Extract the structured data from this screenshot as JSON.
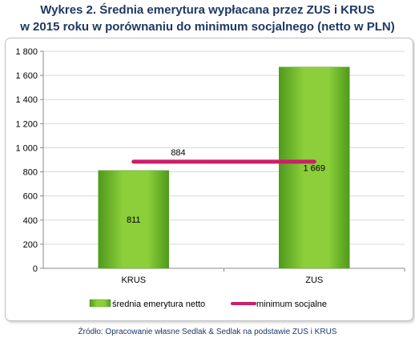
{
  "title_line1": "Wykres 2. Średnia emerytura wypłacana przez ZUS i KRUS",
  "title_line2": "w 2015 roku w porównaniu do minimum socjalnego (netto w PLN)",
  "source": "Źródło: Opracowanie własne Sedlak & Sedlak na podstawie ZUS i KRUS",
  "colors": {
    "bar": "#8ccf3a",
    "bar_dark": "#4f9a1c",
    "line": "#cc1f6a",
    "grid": "#d9d9d9",
    "axis_text": "#000000"
  },
  "chart_data": {
    "type": "bar",
    "categories": [
      "KRUS",
      "ZUS"
    ],
    "series": [
      {
        "name": "średnia emerytura netto",
        "values": [
          811,
          1669
        ],
        "value_labels": [
          "811",
          "1 669"
        ]
      }
    ],
    "reference_line": {
      "name": "minimum socjalne",
      "value": 884,
      "label": "884"
    },
    "ylim": [
      0,
      1800
    ],
    "yticks": [
      0,
      200,
      400,
      600,
      800,
      1000,
      1200,
      1400,
      1600,
      1800
    ],
    "ytick_labels": [
      "0",
      "200",
      "400",
      "600",
      "800",
      "1 000",
      "1 200",
      "1 400",
      "1 600",
      "1 800"
    ],
    "grid": true,
    "legend": "bottom",
    "title": "",
    "xlabel": "",
    "ylabel": ""
  }
}
